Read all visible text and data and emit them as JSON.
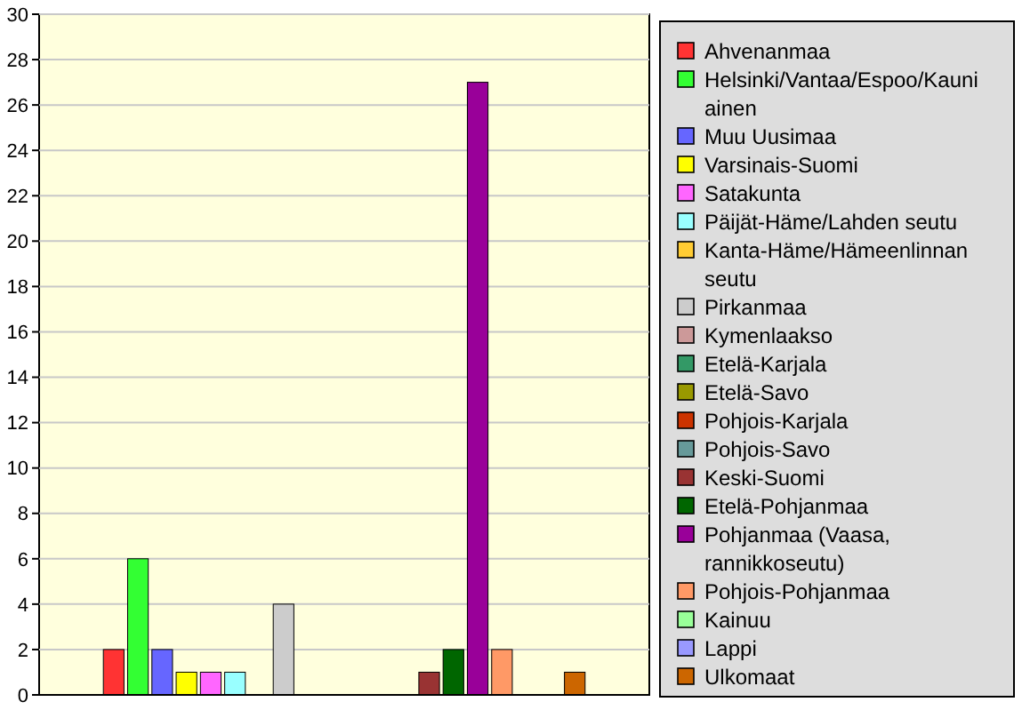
{
  "chart_data": {
    "type": "bar",
    "categories": [
      null
    ],
    "series": [
      {
        "name": "Ahvenanmaa",
        "color": "#ff3333",
        "values": [
          2
        ]
      },
      {
        "name": "Helsinki/Vantaa/Espoo/Kauniainen",
        "color": "#33ff33",
        "values": [
          6
        ]
      },
      {
        "name": "Muu Uusimaa",
        "color": "#6666ff",
        "values": [
          2
        ]
      },
      {
        "name": "Varsinais-Suomi",
        "color": "#ffff00",
        "values": [
          1
        ]
      },
      {
        "name": "Satakunta",
        "color": "#ff66ff",
        "values": [
          1
        ]
      },
      {
        "name": "Päijät-Häme/Lahden seutu",
        "color": "#99ffff",
        "values": [
          1
        ]
      },
      {
        "name": "Kanta-Häme/Hämeenlinnan seutu",
        "color": "#ffcc33",
        "values": [
          0
        ]
      },
      {
        "name": "Pirkanmaa",
        "color": "#cccccc",
        "values": [
          4
        ]
      },
      {
        "name": "Kymenlaakso",
        "color": "#cc9999",
        "values": [
          0
        ]
      },
      {
        "name": "Etelä-Karjala",
        "color": "#339966",
        "values": [
          0
        ]
      },
      {
        "name": "Etelä-Savo",
        "color": "#999900",
        "values": [
          0
        ]
      },
      {
        "name": "Pohjois-Karjala",
        "color": "#cc3300",
        "values": [
          0
        ]
      },
      {
        "name": "Pohjois-Savo",
        "color": "#669999",
        "values": [
          0
        ]
      },
      {
        "name": "Keski-Suomi",
        "color": "#993333",
        "values": [
          1
        ]
      },
      {
        "name": "Etelä-Pohjanmaa",
        "color": "#006600",
        "values": [
          2
        ]
      },
      {
        "name": "Pohjanmaa (Vaasa, rannikkoseutu)",
        "color": "#990099",
        "values": [
          27
        ]
      },
      {
        "name": "Pohjois-Pohjanmaa",
        "color": "#ff9966",
        "values": [
          2
        ]
      },
      {
        "name": "Kainuu",
        "color": "#99ff99",
        "values": [
          0
        ]
      },
      {
        "name": "Lappi",
        "color": "#9999ff",
        "values": [
          0
        ]
      },
      {
        "name": "Ulkomaat",
        "color": "#cc6600",
        "values": [
          1
        ]
      }
    ],
    "ylim": [
      0,
      30
    ],
    "yticks": [
      0,
      2,
      4,
      6,
      8,
      10,
      12,
      14,
      16,
      18,
      20,
      22,
      24,
      26,
      28,
      30
    ],
    "grid": "y",
    "legend": "right"
  }
}
